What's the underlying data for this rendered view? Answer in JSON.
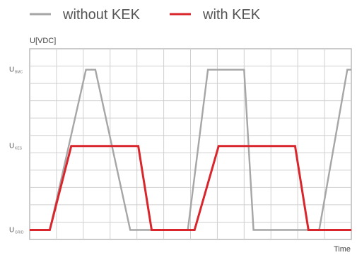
{
  "chart_data": {
    "type": "line",
    "ylabel": "U[VDC]",
    "xlabel": "Time",
    "xlim": [
      0,
      12
    ],
    "ylim": [
      0,
      1
    ],
    "grid": true,
    "legend_position": "top",
    "y_ticks": [
      {
        "main": "U",
        "sub": "BMC",
        "value": 0.89
      },
      {
        "main": "U",
        "sub": "KES",
        "value": 0.49
      },
      {
        "main": "U",
        "sub": "GRID",
        "value": 0.05
      }
    ],
    "series": [
      {
        "name": "without KEK",
        "color": "#a6a6a6",
        "x": [
          0,
          0.75,
          2.1,
          2.45,
          3.75,
          4.9,
          5.9,
          6.65,
          8.0,
          8.35,
          9.65,
          10.8,
          11.85,
          12
        ],
        "y": [
          0.05,
          0.05,
          0.89,
          0.89,
          0.05,
          0.05,
          0.05,
          0.89,
          0.89,
          0.05,
          0.05,
          0.05,
          0.89,
          0.89
        ]
      },
      {
        "name": "with KEK",
        "color": "#d9262c",
        "x": [
          0,
          0.75,
          1.55,
          4.05,
          4.55,
          5.5,
          6.15,
          7.05,
          9.9,
          10.4,
          11.2,
          12
        ],
        "y": [
          0.05,
          0.05,
          0.49,
          0.49,
          0.05,
          0.05,
          0.05,
          0.49,
          0.49,
          0.05,
          0.05,
          0.05
        ]
      }
    ]
  }
}
